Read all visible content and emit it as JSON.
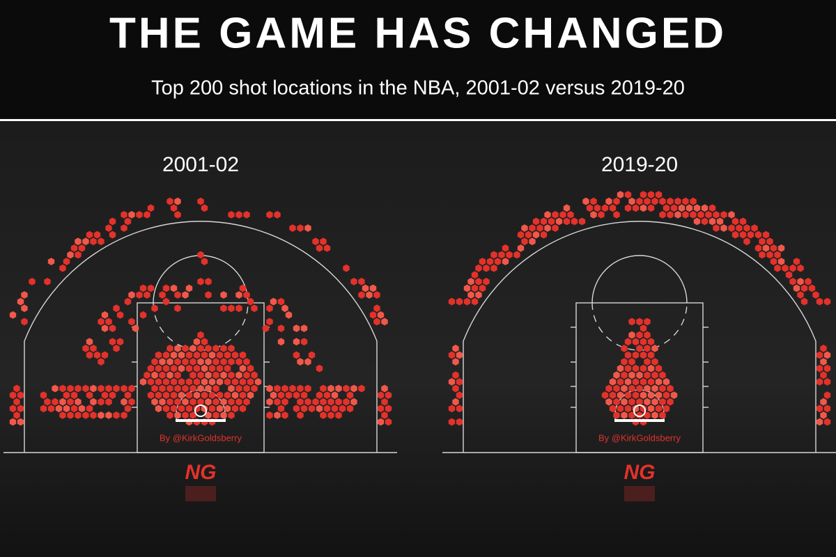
{
  "header": {
    "title": "THE GAME HAS CHANGED",
    "subtitle": "Top 200 shot locations in the NBA, 2001-02 versus 2019-20"
  },
  "panels": [
    {
      "label": "2001-02",
      "credit": "By @KirkGoldsberry",
      "logo": "NG"
    },
    {
      "label": "2019-20",
      "credit": "By @KirkGoldsberry",
      "logo": "NG"
    }
  ]
}
